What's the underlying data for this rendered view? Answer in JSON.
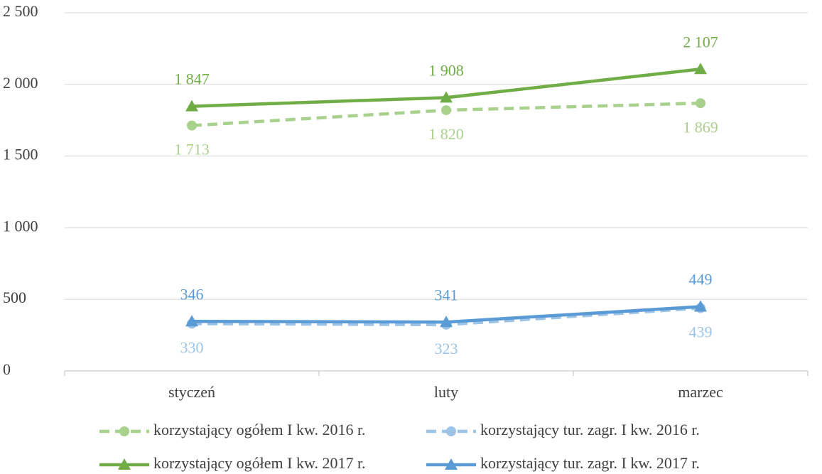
{
  "chart_data": {
    "type": "line",
    "categories": [
      "styczeń",
      "luty",
      "marzec"
    ],
    "ylim": [
      0,
      2500
    ],
    "yticks": [
      0,
      500,
      {
        "value": 1000,
        "label": "1 000"
      },
      {
        "value": 1500,
        "label": "1 500"
      },
      {
        "value": 2000,
        "label": "2 000"
      },
      {
        "value": 2500,
        "label": "2 500"
      }
    ],
    "grid": true,
    "legend": "bottom",
    "series": [
      {
        "name": "korzystający ogółem I kw. 2016 r.",
        "color": "#a9d18e",
        "dash": true,
        "marker": "circle",
        "values": [
          1713,
          1820,
          1869
        ],
        "value_labels": [
          "1 713",
          "1 820",
          "1 869"
        ]
      },
      {
        "name": "korzystający tur. zagr. I kw. 2016 r.",
        "color": "#9dc3e6",
        "dash": true,
        "marker": "circle",
        "values": [
          330,
          323,
          439
        ]
      },
      {
        "name": "korzystający ogółem I kw. 2017 r.",
        "color": "#70ad47",
        "dash": false,
        "marker": "triangle",
        "values": [
          1847,
          1908,
          2107
        ],
        "value_labels": [
          "1 847",
          "1 908",
          "2 107"
        ]
      },
      {
        "name": "korzystający tur. zagr. I kw. 2017 r.",
        "color": "#5b9bd5",
        "dash": false,
        "marker": "triangle",
        "values": [
          346,
          341,
          449
        ]
      }
    ]
  }
}
